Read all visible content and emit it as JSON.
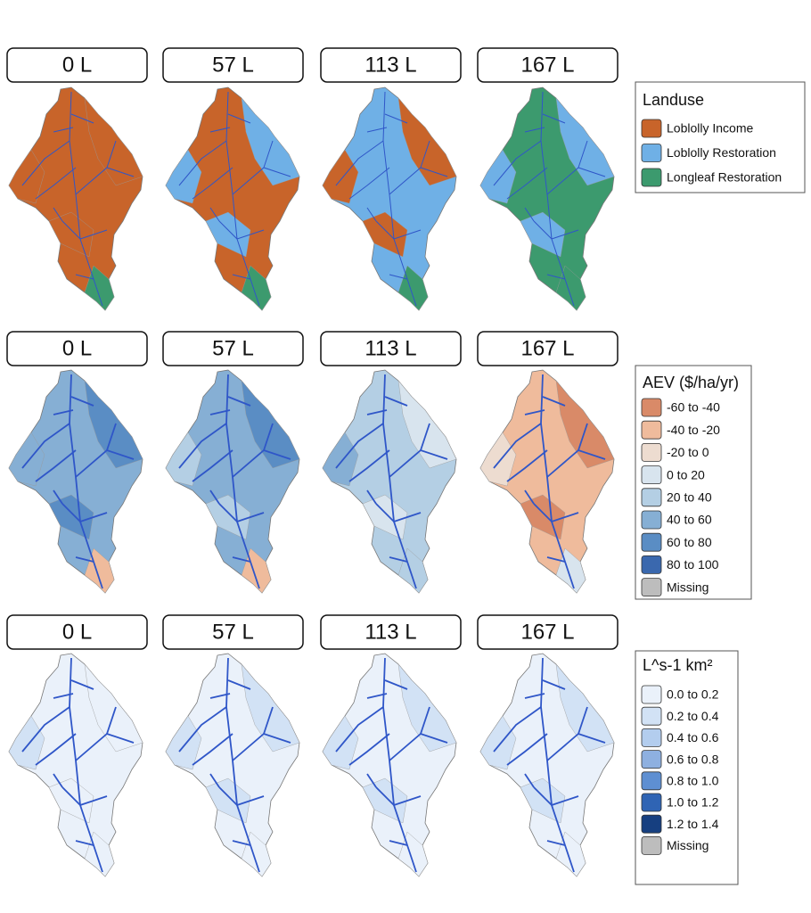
{
  "rows": [
    {
      "panels": [
        "0 L",
        "57 L",
        "113 L",
        "167 L"
      ],
      "legend": {
        "title": "Landuse",
        "items": [
          {
            "label": "Loblolly Income",
            "color": "#c8642a"
          },
          {
            "label": "Loblolly Restoration",
            "color": "#6fb0e6"
          },
          {
            "label": "Longleaf Restoration",
            "color": "#3c9a6e"
          }
        ]
      }
    },
    {
      "panels": [
        "0 L",
        "57 L",
        "113 L",
        "167 L"
      ],
      "legend": {
        "title": "AEV ($/ha/yr)",
        "items": [
          {
            "label": "-60 to -40",
            "color": "#d98a68"
          },
          {
            "label": "-40 to -20",
            "color": "#efbb9c"
          },
          {
            "label": "-20 to 0",
            "color": "#eddcd0"
          },
          {
            "label": "0 to 20",
            "color": "#d8e4ee"
          },
          {
            "label": "20 to 40",
            "color": "#b4cfe4"
          },
          {
            "label": "40 to 60",
            "color": "#86afd4"
          },
          {
            "label": "60 to 80",
            "color": "#5a8dc4"
          },
          {
            "label": "80 to 100",
            "color": "#3a68ae"
          },
          {
            "label": "Missing",
            "color": "#bdbdbd"
          }
        ]
      }
    },
    {
      "panels": [
        "0 L",
        "57 L",
        "113 L",
        "167 L"
      ],
      "legend": {
        "title": "L^s-1 km²",
        "items": [
          {
            "label": "0.0 to 0.2",
            "color": "#eaf1fa"
          },
          {
            "label": "0.2 to 0.4",
            "color": "#d2e2f5"
          },
          {
            "label": "0.4 to 0.6",
            "color": "#b3cdee"
          },
          {
            "label": "0.6 to 0.8",
            "color": "#8eb0e0"
          },
          {
            "label": "0.8 to 1.0",
            "color": "#5e8fd2"
          },
          {
            "label": "1.0 to 1.2",
            "color": "#2f64b4"
          },
          {
            "label": "1.2 to 1.4",
            "color": "#163f80"
          },
          {
            "label": "Missing",
            "color": "#bdbdbd"
          }
        ]
      }
    }
  ]
}
